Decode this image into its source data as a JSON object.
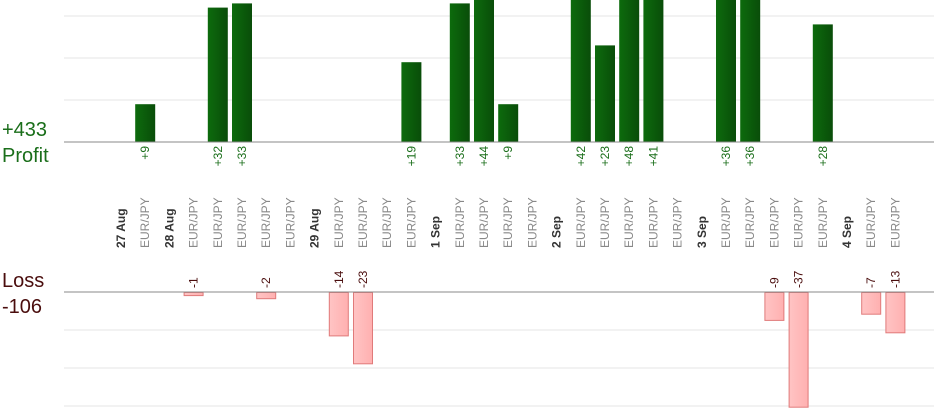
{
  "summary": {
    "profit_total": "+433",
    "profit_label": "Profit",
    "loss_label": "Loss",
    "loss_total": "-106"
  },
  "colors": {
    "profit_bar": "#0d6b0d",
    "profit_bar_dark": "#094d09",
    "profit_text": "#1a6e1a",
    "loss_bar": "#ffb0b0",
    "loss_bar_edge": "#e07a7a",
    "loss_text": "#4a0d0d",
    "grid": "#e6e6e6",
    "axis": "#888888",
    "symbol_text": "#888888",
    "date_text": "#333333"
  },
  "chart_data": {
    "type": "bar",
    "categories": [
      "27 Aug",
      "EUR/JPY",
      "28 Aug",
      "EUR/JPY",
      "EUR/JPY",
      "EUR/JPY",
      "EUR/JPY",
      "EUR/JPY",
      "29 Aug",
      "EUR/JPY",
      "EUR/JPY",
      "EUR/JPY",
      "EUR/JPY",
      "1 Sep",
      "EUR/JPY",
      "EUR/JPY",
      "EUR/JPY",
      "EUR/JPY",
      "2 Sep",
      "EUR/JPY",
      "EUR/JPY",
      "EUR/JPY",
      "EUR/JPY",
      "EUR/JPY",
      "3 Sep",
      "EUR/JPY",
      "EUR/JPY",
      "EUR/JPY",
      "EUR/JPY",
      "EUR/JPY",
      "4 Sep",
      "EUR/JPY",
      "EUR/JPY"
    ],
    "is_date": [
      true,
      false,
      true,
      false,
      false,
      false,
      false,
      false,
      true,
      false,
      false,
      false,
      false,
      true,
      false,
      false,
      false,
      false,
      true,
      false,
      false,
      false,
      false,
      false,
      true,
      false,
      false,
      false,
      false,
      false,
      true,
      false,
      false
    ],
    "series": [
      {
        "name": "Profit",
        "values": [
          null,
          9,
          null,
          null,
          32,
          33,
          null,
          null,
          null,
          null,
          null,
          null,
          19,
          null,
          33,
          44,
          9,
          null,
          null,
          42,
          23,
          48,
          41,
          null,
          null,
          36,
          36,
          null,
          null,
          28,
          null,
          null,
          null
        ],
        "labels": [
          "",
          "+9",
          "",
          "",
          "+32",
          "+33",
          "",
          "",
          "",
          "",
          "",
          "",
          "+19",
          "",
          "+33",
          "+44",
          "+9",
          "",
          "",
          "+42",
          "+23",
          "+48",
          "+41",
          "",
          "",
          "+36",
          "+36",
          "",
          "",
          "+28",
          "",
          "",
          ""
        ]
      },
      {
        "name": "Loss",
        "values": [
          null,
          null,
          null,
          -1,
          null,
          null,
          -2,
          null,
          null,
          -14,
          -23,
          null,
          null,
          null,
          null,
          null,
          null,
          null,
          null,
          null,
          null,
          null,
          null,
          null,
          null,
          null,
          null,
          -9,
          -37,
          null,
          null,
          -7,
          -13
        ],
        "labels": [
          "",
          "",
          "",
          "-1",
          "",
          "",
          "-2",
          "",
          "",
          "-14",
          "-23",
          "",
          "",
          "",
          "",
          "",
          "",
          "",
          "",
          "",
          "",
          "",
          "",
          "",
          "",
          "",
          "",
          "-9",
          "-37",
          "",
          "",
          "-7",
          "-13"
        ]
      }
    ],
    "profit_ylim": [
      0,
      33
    ],
    "loss_ylim": [
      -37,
      0
    ],
    "grid": true,
    "legend": "none"
  }
}
